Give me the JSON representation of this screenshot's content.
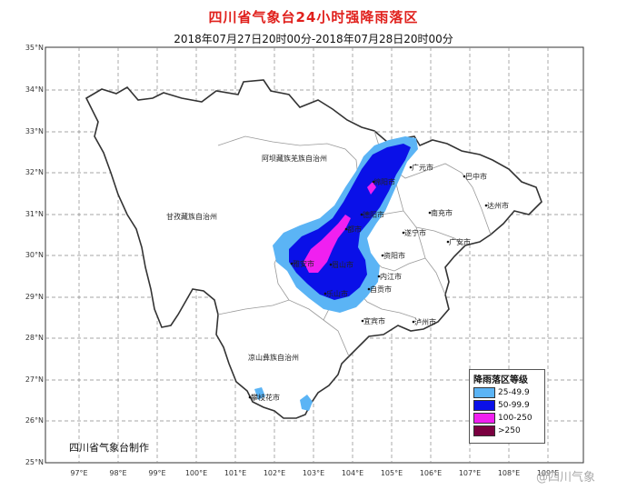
{
  "title": "四川省气象台24小时强降雨落区",
  "subtitle": "2018年07月27日20时00分-2018年07月28日20时00分",
  "lat_labels": [
    "35°N",
    "34°N",
    "33°N",
    "32°N",
    "31°N",
    "30°N",
    "29°N",
    "28°N",
    "27°N",
    "26°N",
    "25°N"
  ],
  "lon_labels": [
    "97°E",
    "98°E",
    "99°E",
    "100°E",
    "101°E",
    "102°E",
    "103°E",
    "104°E",
    "105°E",
    "106°E",
    "107°E",
    "108°E",
    "109°E"
  ],
  "regions": {
    "aba": "阿坝藏族羌族自治州",
    "ganzi": "甘孜藏族自治州",
    "liangshan": "凉山彝族自治州"
  },
  "cities": {
    "guangyuan": "广元市",
    "bazhong": "巴中市",
    "dazhou": "达州市",
    "mianyang": "绵阳市",
    "nanchong": "南充市",
    "deyang": "德阳市",
    "suining": "遂宁市",
    "guangan": "广安市",
    "chengdu": "都市",
    "ziyang": "资阳市",
    "yaan": "雅安市",
    "meishan": "眉山市",
    "neijiang": "内江市",
    "leshan": "乐山市",
    "zigong": "自贡市",
    "yibin": "宜宾市",
    "luzhou": "泸州市",
    "panzhihua": "攀枝花市"
  },
  "legend": {
    "title": "降雨落区等级",
    "items": [
      {
        "label": "25-49.9",
        "color": "#5bb4f5"
      },
      {
        "label": "50-99.9",
        "color": "#0a10e8"
      },
      {
        "label": "100-250",
        "color": "#f020f0"
      },
      {
        "label": ">250",
        "color": "#7a0040"
      }
    ]
  },
  "maker": "四川省气象台制作",
  "watermark": "@四川气象"
}
